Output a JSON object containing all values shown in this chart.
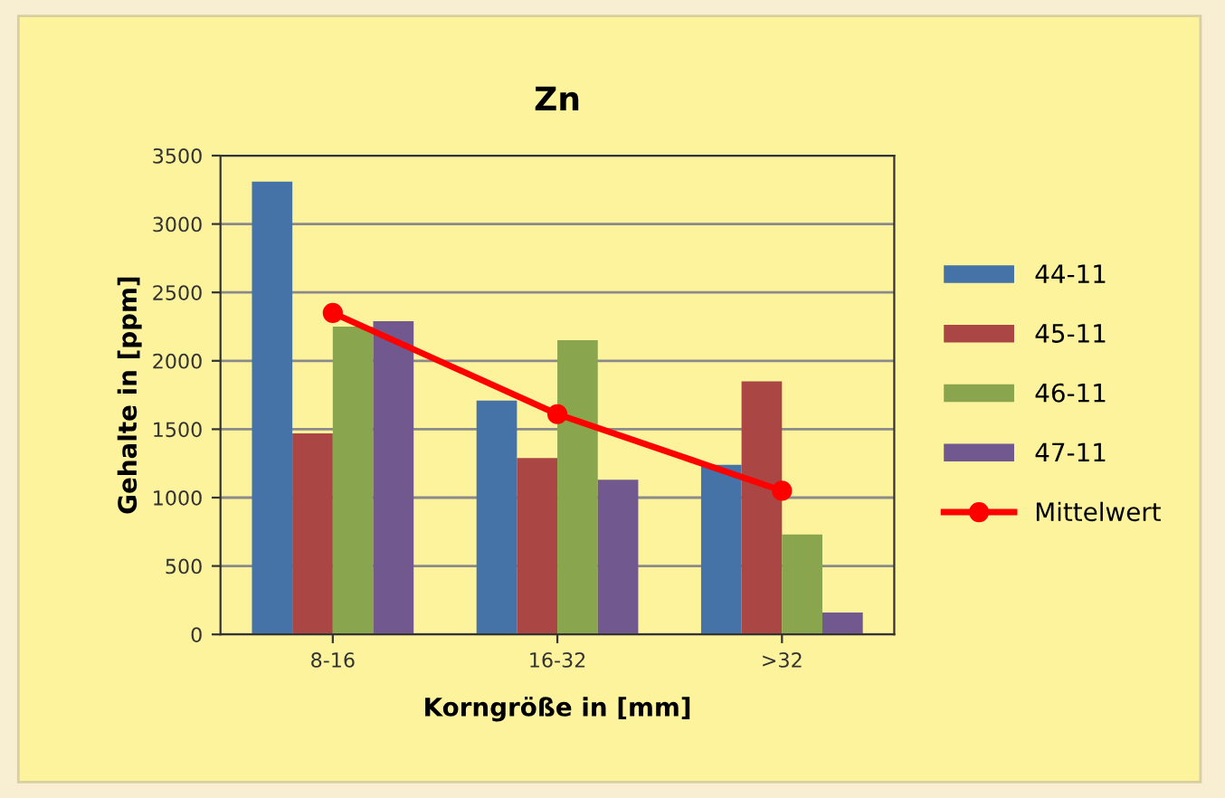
{
  "chart_data": {
    "type": "bar",
    "title": "Zn",
    "xlabel": "Korngröße in [mm]",
    "ylabel": "Gehalte in [ppm]",
    "categories": [
      "8-16",
      "16-32",
      ">32"
    ],
    "series": [
      {
        "name": "44-11",
        "color": "#4572a7",
        "values": [
          3310,
          1710,
          1240
        ]
      },
      {
        "name": "45-11",
        "color": "#aa4643",
        "values": [
          1470,
          1290,
          1850
        ]
      },
      {
        "name": "46-11",
        "color": "#89a54e",
        "values": [
          2250,
          2150,
          730
        ]
      },
      {
        "name": "47-11",
        "color": "#71588f",
        "values": [
          2290,
          1130,
          160
        ]
      },
      {
        "name": "Mittelwert",
        "type": "line",
        "color": "#ff0000",
        "marker": "circle",
        "values": [
          2350,
          1610,
          1050
        ]
      }
    ],
    "ylim": [
      0,
      3500
    ],
    "yticks": [
      0,
      500,
      1000,
      1500,
      2000,
      2500,
      3000,
      3500
    ],
    "grid": "y",
    "legend": "right"
  }
}
